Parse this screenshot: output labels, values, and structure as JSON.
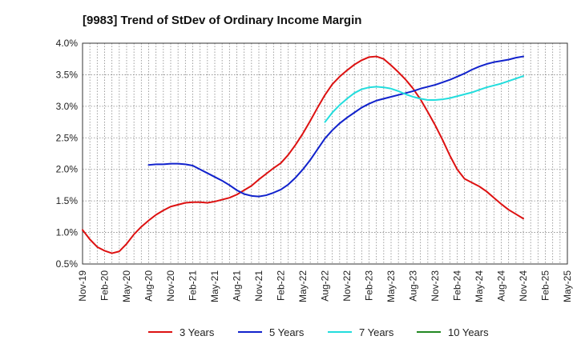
{
  "chart_data": {
    "type": "line",
    "title": "[9983]  Trend of StDev of Ordinary Income Margin",
    "xlabel": "",
    "ylabel": "",
    "x_start": "Nov-19",
    "x_ticks": [
      "Nov-19",
      "Feb-20",
      "May-20",
      "Aug-20",
      "Nov-20",
      "Feb-21",
      "May-21",
      "Aug-21",
      "Nov-21",
      "Feb-22",
      "May-22",
      "Aug-22",
      "Nov-22",
      "Feb-23",
      "May-23",
      "Aug-23",
      "Nov-23",
      "Feb-24",
      "May-24",
      "Aug-24",
      "Nov-24",
      "Feb-25",
      "May-25"
    ],
    "y_ticks": [
      "0.5%",
      "1.0%",
      "1.5%",
      "2.0%",
      "2.5%",
      "3.0%",
      "3.5%",
      "4.0%"
    ],
    "ylim": [
      0.5,
      4.0
    ],
    "grid": true,
    "legend_position": "bottom",
    "series": [
      {
        "name": "3 Years",
        "color": "#dd1111",
        "x": [
          "Nov-19",
          "Dec-19",
          "Jan-20",
          "Feb-20",
          "Mar-20",
          "Apr-20",
          "May-20",
          "Jun-20",
          "Jul-20",
          "Aug-20",
          "Sep-20",
          "Oct-20",
          "Nov-20",
          "Dec-20",
          "Jan-21",
          "Feb-21",
          "Mar-21",
          "Apr-21",
          "May-21",
          "Jun-21",
          "Jul-21",
          "Aug-21",
          "Sep-21",
          "Oct-21",
          "Nov-21",
          "Dec-21",
          "Jan-22",
          "Feb-22",
          "Mar-22",
          "Apr-22",
          "May-22",
          "Jun-22",
          "Jul-22",
          "Aug-22",
          "Sep-22",
          "Oct-22",
          "Nov-22",
          "Dec-22",
          "Jan-23",
          "Feb-23",
          "Mar-23",
          "Apr-23",
          "May-23",
          "Jun-23",
          "Jul-23",
          "Aug-23",
          "Sep-23",
          "Oct-23",
          "Nov-23",
          "Dec-23",
          "Jan-24",
          "Feb-24",
          "Mar-24",
          "Apr-24",
          "May-24",
          "Jun-24",
          "Jul-24",
          "Aug-24",
          "Sep-24",
          "Oct-24",
          "Nov-24"
        ],
        "values": [
          1.04,
          0.89,
          0.77,
          0.71,
          0.67,
          0.7,
          0.82,
          0.97,
          1.09,
          1.19,
          1.28,
          1.35,
          1.41,
          1.44,
          1.47,
          1.48,
          1.48,
          1.47,
          1.49,
          1.52,
          1.55,
          1.6,
          1.67,
          1.74,
          1.84,
          1.93,
          2.02,
          2.1,
          2.23,
          2.39,
          2.57,
          2.77,
          2.98,
          3.18,
          3.35,
          3.47,
          3.57,
          3.66,
          3.73,
          3.78,
          3.79,
          3.75,
          3.65,
          3.54,
          3.42,
          3.28,
          3.11,
          2.91,
          2.7,
          2.47,
          2.22,
          2.0,
          1.85,
          1.79,
          1.73,
          1.65,
          1.55,
          1.45,
          1.36,
          1.29,
          1.22
        ]
      },
      {
        "name": "5 Years",
        "color": "#1122cc",
        "x": [
          "Aug-20",
          "Sep-20",
          "Oct-20",
          "Nov-20",
          "Dec-20",
          "Jan-21",
          "Feb-21",
          "Mar-21",
          "Apr-21",
          "May-21",
          "Jun-21",
          "Jul-21",
          "Aug-21",
          "Sep-21",
          "Oct-21",
          "Nov-21",
          "Dec-21",
          "Jan-22",
          "Feb-22",
          "Mar-22",
          "Apr-22",
          "May-22",
          "Jun-22",
          "Jul-22",
          "Aug-22",
          "Sep-22",
          "Oct-22",
          "Nov-22",
          "Dec-22",
          "Jan-23",
          "Feb-23",
          "Mar-23",
          "Apr-23",
          "May-23",
          "Jun-23",
          "Jul-23",
          "Aug-23",
          "Sep-23",
          "Oct-23",
          "Nov-23",
          "Dec-23",
          "Jan-24",
          "Feb-24",
          "Mar-24",
          "Apr-24",
          "May-24",
          "Jun-24",
          "Jul-24",
          "Aug-24",
          "Sep-24",
          "Oct-24",
          "Nov-24"
        ],
        "values": [
          2.07,
          2.08,
          2.08,
          2.09,
          2.09,
          2.08,
          2.06,
          2.0,
          1.94,
          1.88,
          1.82,
          1.75,
          1.67,
          1.61,
          1.58,
          1.57,
          1.59,
          1.63,
          1.68,
          1.76,
          1.87,
          2.0,
          2.15,
          2.32,
          2.49,
          2.62,
          2.73,
          2.82,
          2.9,
          2.98,
          3.04,
          3.09,
          3.12,
          3.15,
          3.18,
          3.21,
          3.24,
          3.28,
          3.31,
          3.34,
          3.38,
          3.42,
          3.47,
          3.52,
          3.58,
          3.63,
          3.67,
          3.7,
          3.72,
          3.74,
          3.77,
          3.79
        ]
      },
      {
        "name": "7 Years",
        "color": "#22dddd",
        "x": [
          "Aug-22",
          "Sep-22",
          "Oct-22",
          "Nov-22",
          "Dec-22",
          "Jan-23",
          "Feb-23",
          "Mar-23",
          "Apr-23",
          "May-23",
          "Jun-23",
          "Jul-23",
          "Aug-23",
          "Sep-23",
          "Oct-23",
          "Nov-23",
          "Dec-23",
          "Jan-24",
          "Feb-24",
          "Mar-24",
          "Apr-24",
          "May-24",
          "Jun-24",
          "Jul-24",
          "Aug-24",
          "Sep-24",
          "Oct-24",
          "Nov-24"
        ],
        "values": [
          2.75,
          2.9,
          3.02,
          3.12,
          3.21,
          3.27,
          3.3,
          3.31,
          3.3,
          3.28,
          3.24,
          3.19,
          3.15,
          3.12,
          3.1,
          3.1,
          3.11,
          3.13,
          3.16,
          3.19,
          3.22,
          3.26,
          3.3,
          3.33,
          3.36,
          3.4,
          3.44,
          3.48
        ]
      },
      {
        "name": "10 Years",
        "color": "#228822",
        "x": [],
        "values": []
      }
    ]
  }
}
